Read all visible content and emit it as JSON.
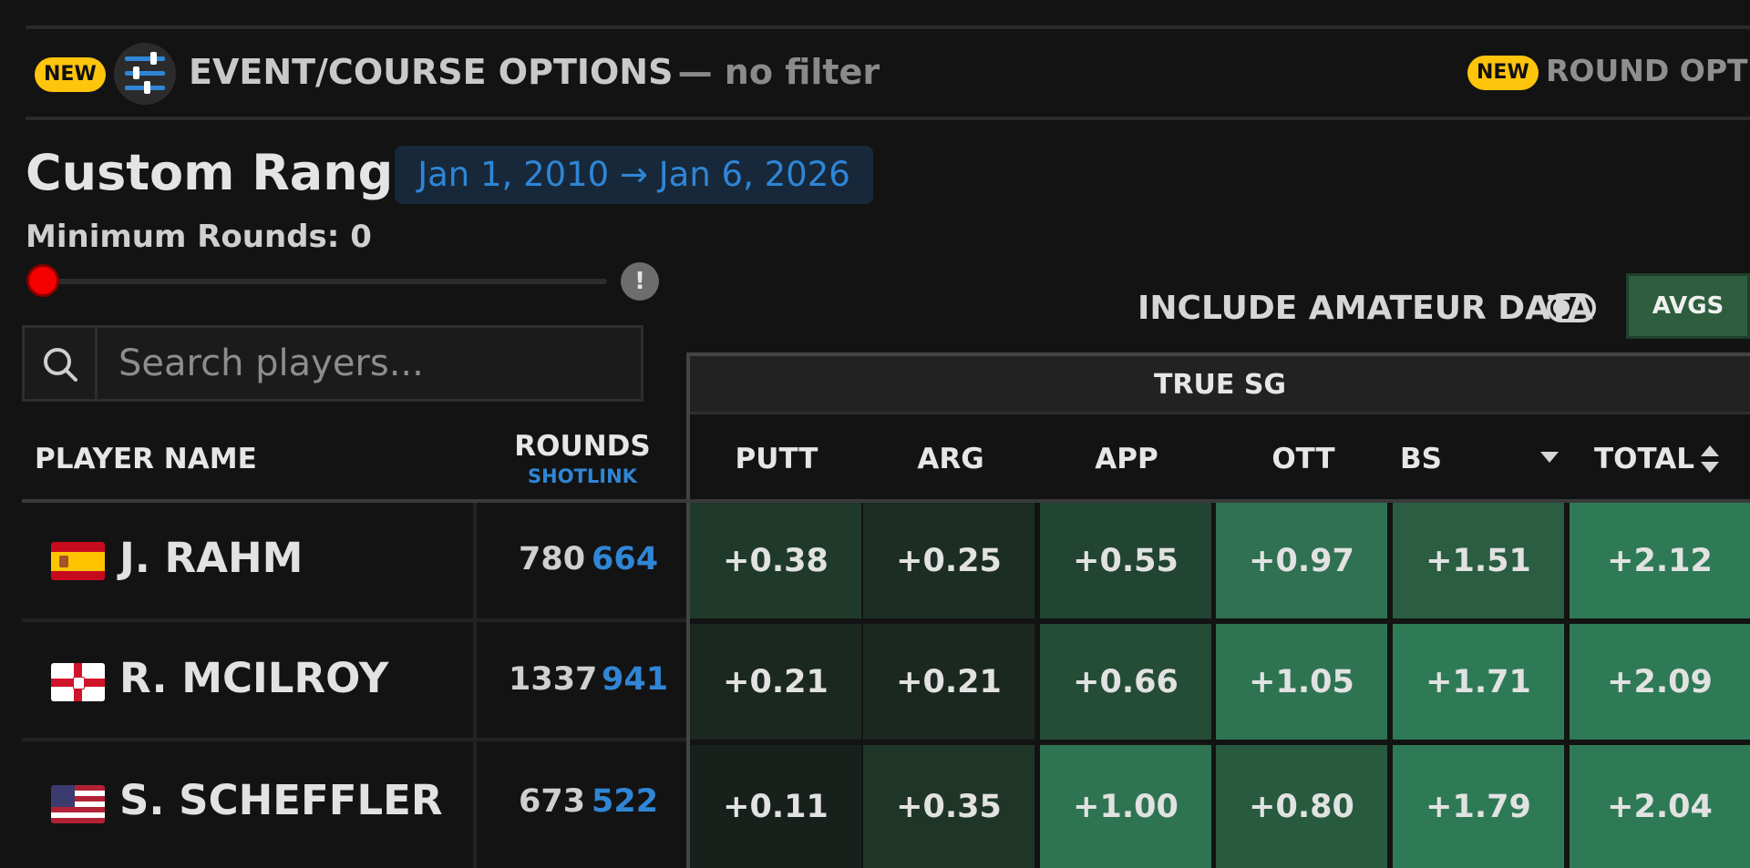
{
  "top_bar": {
    "new_badge": "NEW",
    "event_options_label": "EVENT/COURSE OPTIONS",
    "event_options_filter": "— no filter",
    "round_new_badge": "NEW",
    "round_options_label": "ROUND OPTIO"
  },
  "range": {
    "title": "Custom Range",
    "date_range": "Jan 1, 2010 → Jan 6, 2026",
    "min_rounds_label": "Minimum Rounds: 0",
    "min_rounds_value": 0,
    "warning_symbol": "!"
  },
  "search": {
    "placeholder": "Search players..."
  },
  "controls": {
    "include_amateur_label": "INCLUDE AMATEUR DATA",
    "include_amateur_on": false,
    "avgs_button": "AVGS"
  },
  "table": {
    "group_header": "TRUE SG",
    "col_player": "PLAYER NAME",
    "col_rounds": "ROUNDS",
    "col_rounds_sub": "SHOTLINK",
    "stat_columns": [
      "PUTT",
      "ARG",
      "APP",
      "OTT",
      "BS",
      "TOTAL"
    ],
    "bs_sort_icon": "caret-down-icon",
    "total_sort_icon": "sort-updown-icon",
    "rows": [
      {
        "flag": "spain-flag-icon",
        "name": "J. RAHM",
        "rounds": "780",
        "shotlink": "664",
        "values": [
          "+0.38",
          "+0.25",
          "+0.55",
          "+0.97",
          "+1.51",
          "+2.12"
        ]
      },
      {
        "flag": "northern-ireland-flag-icon",
        "name": "R. MCILROY",
        "rounds": "1337",
        "shotlink": "941",
        "values": [
          "+0.21",
          "+0.21",
          "+0.66",
          "+1.05",
          "+1.71",
          "+2.09"
        ]
      },
      {
        "flag": "usa-flag-icon",
        "name": "S. SCHEFFLER",
        "rounds": "673",
        "shotlink": "522",
        "values": [
          "+0.11",
          "+0.35",
          "+1.00",
          "+0.80",
          "+1.79",
          "+2.04"
        ]
      }
    ]
  },
  "colors": {
    "background": "#131313",
    "accent_blue": "#2f86d6",
    "badge_yellow": "#ffc40c",
    "slider_red": "#f50000",
    "avgs_green": "#2e5e3e"
  }
}
